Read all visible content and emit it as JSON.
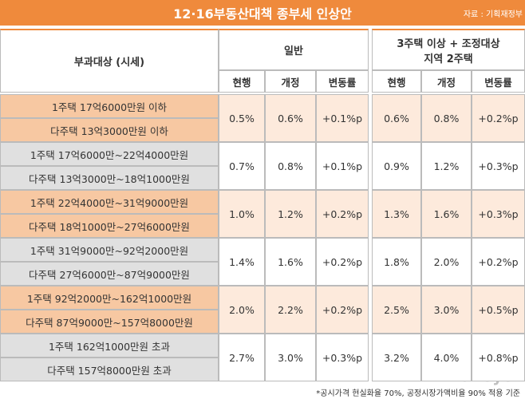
{
  "header": {
    "title": "12·16부동산대책 종부세 인상안",
    "source": "자료 : 기획재정부"
  },
  "table": {
    "label_header": "부과대상 (시세)",
    "groups": [
      {
        "name": "일반",
        "columns": [
          "현행",
          "개정",
          "변동률"
        ]
      },
      {
        "name_lines": [
          "3주택 이상 + 조정대상",
          "지역 2주택"
        ],
        "columns": [
          "현행",
          "개정",
          "변동률"
        ]
      }
    ],
    "rows": [
      {
        "labels": [
          "1주택 17억6000만원 이하",
          "다주택 13억3000만원 이하"
        ],
        "values": [
          "0.5%",
          "0.6%",
          "+0.1%p",
          "0.6%",
          "0.8%",
          "+0.2%p"
        ]
      },
      {
        "labels": [
          "1주택 17억6000만~22억4000만원",
          "다주택 13억3000만~18억1000만원"
        ],
        "values": [
          "0.7%",
          "0.8%",
          "+0.1%p",
          "0.9%",
          "1.2%",
          "+0.3%p"
        ]
      },
      {
        "labels": [
          "1주택 22억4000만~31억9000만원",
          "다주택 18억1000만~27억6000만원"
        ],
        "values": [
          "1.0%",
          "1.2%",
          "+0.2%p",
          "1.3%",
          "1.6%",
          "+0.3%p"
        ]
      },
      {
        "labels": [
          "1주택 31억9000만~92억2000만원",
          "다주택 27억6000만~87억9000만원"
        ],
        "values": [
          "1.4%",
          "1.6%",
          "+0.2%p",
          "1.8%",
          "2.0%",
          "+0.2%p"
        ]
      },
      {
        "labels": [
          "1주택 92억2000만~162억1000만원",
          "다주택 87억9000만~157억8000만원"
        ],
        "values": [
          "2.0%",
          "2.2%",
          "+0.2%p",
          "2.5%",
          "3.0%",
          "+0.5%p"
        ]
      },
      {
        "labels": [
          "1주택 162억1000만원 초과",
          "다주택 157억8000만원 초과"
        ],
        "values": [
          "2.7%",
          "3.0%",
          "+0.3%p",
          "3.2%",
          "4.0%",
          "+0.8%p"
        ]
      }
    ]
  },
  "footnote": "*공시가격 현실화율 70%, 공정시장가액비율 90% 적용 기준",
  "watermark": "MoneyS"
}
